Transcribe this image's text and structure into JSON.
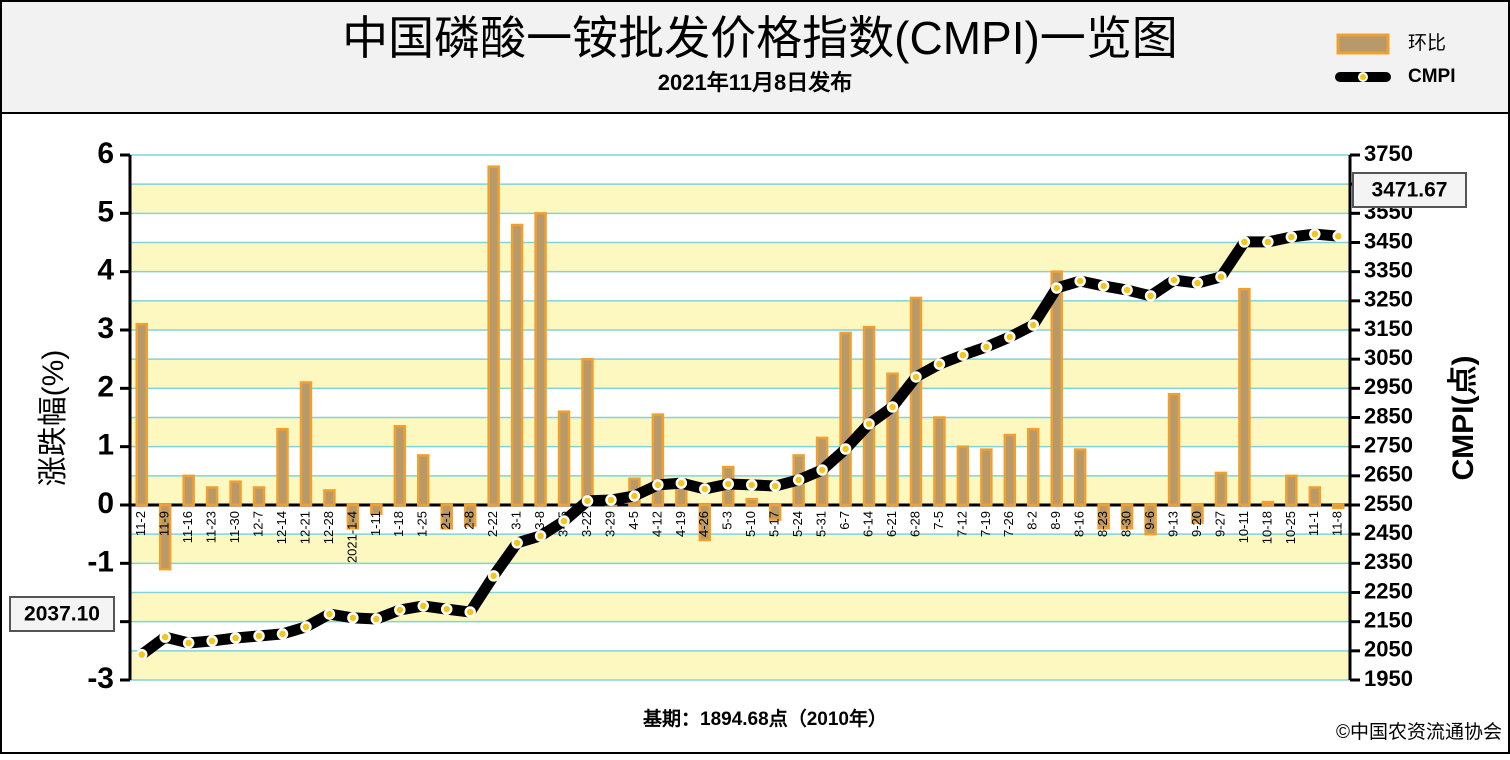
{
  "chart_data": {
    "type": "bar-line",
    "title": "中国磷酸一铵批发价格指数(CMPI)一览图",
    "subtitle": "2021年11月8日发布",
    "y_label": "涨跌幅(%)",
    "y2_label": "CMPI(点)",
    "footnote": "基期：1894.68点（2010年）",
    "source": "©中国农资流通协会",
    "categories": [
      "11-2",
      "11-9",
      "11-16",
      "11-23",
      "11-30",
      "12-7",
      "12-14",
      "12-21",
      "12-28",
      "2021-1-4",
      "1-11",
      "1-18",
      "1-25",
      "2-1",
      "2-8",
      "2-22",
      "3-1",
      "3-8",
      "3-15",
      "3-22",
      "3-29",
      "4-5",
      "4-12",
      "4-19",
      "4-26",
      "5-3",
      "5-10",
      "5-17",
      "5-24",
      "5-31",
      "6-7",
      "6-14",
      "6-21",
      "6-28",
      "7-5",
      "7-12",
      "7-19",
      "7-26",
      "8-2",
      "8-9",
      "8-16",
      "8-23",
      "8-30",
      "9-6",
      "9-13",
      "9-20",
      "9-27",
      "10-11",
      "10-18",
      "10-25",
      "11-1",
      "11-8"
    ],
    "series": [
      {
        "name": "环比",
        "type": "bar",
        "color": "#f0a030",
        "values": [
          3.1,
          -1.1,
          0.5,
          0.3,
          0.4,
          0.3,
          1.3,
          2.1,
          0.25,
          -0.4,
          -0.15,
          1.35,
          0.85,
          -0.4,
          -0.35,
          5.8,
          4.8,
          5.0,
          1.6,
          2.5,
          0.02,
          0.45,
          1.55,
          0.3,
          -0.6,
          0.65,
          0.1,
          -0.25,
          0.85,
          1.15,
          2.95,
          3.05,
          2.25,
          3.55,
          1.5,
          1.0,
          0.95,
          1.2,
          1.3,
          4.0,
          0.95,
          -0.4,
          -0.4,
          -0.5,
          1.9,
          -0.3,
          0.55,
          3.7,
          0.05,
          0.5,
          0.3,
          -0.05
        ]
      },
      {
        "name": "CMPI",
        "type": "line",
        "axis": "y2",
        "color": "#000000",
        "values": [
          2037.1,
          2097,
          2077,
          2084,
          2094,
          2101,
          2108,
          2132,
          2176,
          2163,
          2159,
          2190,
          2204,
          2193,
          2183,
          2307,
          2420,
          2444,
          2495,
          2564,
          2567,
          2581,
          2619,
          2625,
          2605,
          2622,
          2619,
          2615,
          2636,
          2670,
          2742,
          2828,
          2886,
          2989,
          3033,
          3064,
          3092,
          3126,
          3167,
          3294,
          3318,
          3301,
          3287,
          3267,
          3321,
          3311,
          3332,
          3452,
          3452,
          3469,
          3479,
          3471.67
        ],
        "value_labels": [
          "2037.10",
          null,
          null,
          null,
          null,
          null,
          null,
          null,
          null,
          null,
          null,
          null,
          null,
          null,
          null,
          null,
          null,
          null,
          null,
          null,
          null,
          null,
          null,
          null,
          null,
          null,
          null,
          null,
          null,
          null,
          null,
          null,
          null,
          null,
          null,
          null,
          null,
          null,
          null,
          null,
          null,
          null,
          null,
          null,
          null,
          null,
          null,
          null,
          null,
          null,
          null,
          "3471.67"
        ]
      }
    ],
    "ylim": [
      -3,
      6
    ],
    "yticks": [
      -3,
      -2,
      -1,
      0,
      1,
      2,
      3,
      4,
      5,
      6
    ],
    "y2lim": [
      1950,
      3750
    ],
    "y2ticks": [
      1950,
      2050,
      2150,
      2250,
      2350,
      2450,
      2550,
      2650,
      2750,
      2850,
      2950,
      3050,
      3150,
      3250,
      3350,
      3450,
      3550,
      3650,
      3750
    ],
    "grid": true
  }
}
